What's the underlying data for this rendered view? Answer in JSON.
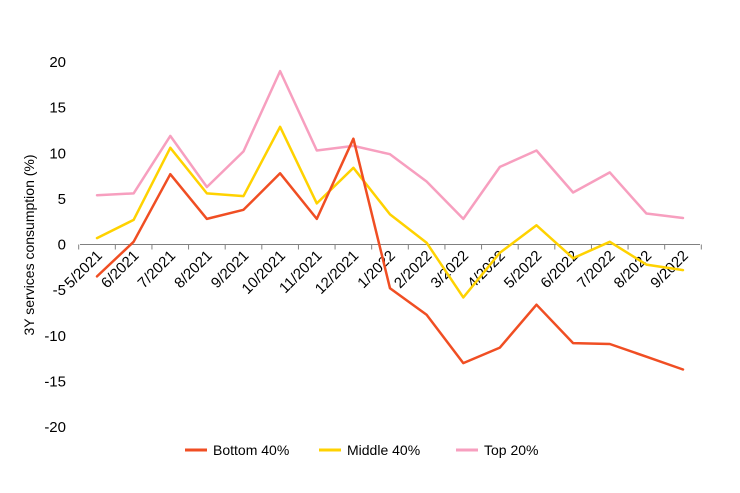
{
  "chart_data": {
    "type": "line",
    "title": "",
    "xlabel": "",
    "ylabel": "3Y services consumption (%)",
    "ylim": [
      -20,
      20
    ],
    "yticks": [
      -20,
      -15,
      -10,
      -5,
      0,
      5,
      10,
      15,
      20
    ],
    "grid": false,
    "legend_position": "bottom",
    "categories": [
      "5/2021",
      "6/2021",
      "7/2021",
      "8/2021",
      "9/2021",
      "10/2021",
      "11/2021",
      "12/2021",
      "1/2022",
      "2/2022",
      "3/2022",
      "4/2022",
      "5/2022",
      "6/2022",
      "7/2022",
      "8/2022",
      "9/2022"
    ],
    "series": [
      {
        "name": "Bottom 40%",
        "color": "#f04e23",
        "values": [
          -3.5,
          0.3,
          7.7,
          2.8,
          3.8,
          7.8,
          2.8,
          11.6,
          -4.8,
          -7.7,
          -13.0,
          -11.3,
          -6.6,
          -10.8,
          -10.9,
          -12.3,
          -13.7
        ]
      },
      {
        "name": "Middle 40%",
        "color": "#ffd200",
        "values": [
          0.7,
          2.7,
          10.6,
          5.6,
          5.3,
          12.9,
          4.5,
          8.4,
          3.3,
          0.2,
          -5.8,
          -0.9,
          2.1,
          -1.5,
          0.3,
          -2.2,
          -2.8
        ]
      },
      {
        "name": "Top 20%",
        "color": "#f79fbf",
        "values": [
          5.4,
          5.6,
          11.9,
          6.3,
          10.2,
          19.0,
          10.3,
          10.8,
          9.9,
          6.9,
          2.8,
          8.5,
          10.3,
          5.7,
          7.9,
          3.4,
          2.9
        ]
      }
    ]
  }
}
